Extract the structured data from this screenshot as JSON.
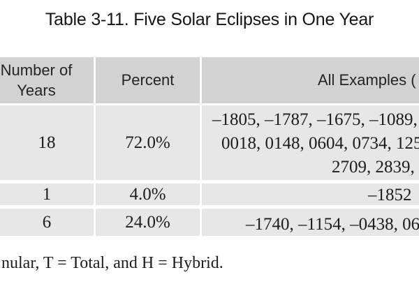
{
  "title": "Table 3-11. Five Solar Eclipses in One Year",
  "table": {
    "headers": {
      "col1_line1": "Number of",
      "col1_line2": "Years",
      "col2": "Percent",
      "col3": "All Examples ("
    },
    "rows": [
      {
        "years": "18",
        "percent": "72.0%",
        "examples_lines": [
          "–1805, –1787, –1675, –1089, –",
          "0018, 0148, 0604, 0734, 125",
          "2709, 2839, 2"
        ]
      },
      {
        "years": "1",
        "percent": "4.0%",
        "examples_lines": [
          "–1852"
        ]
      },
      {
        "years": "6",
        "percent": "24.0%",
        "examples_lines": [
          "–1740, –1154, –0438, 06"
        ]
      }
    ]
  },
  "footnote": "nular, T = Total, and H = Hybrid.",
  "colors": {
    "header_bg": "#d2d2d3",
    "row_bg": "#e7e7e8",
    "page_bg": "#ffffff",
    "text": "#1c1c1e"
  }
}
